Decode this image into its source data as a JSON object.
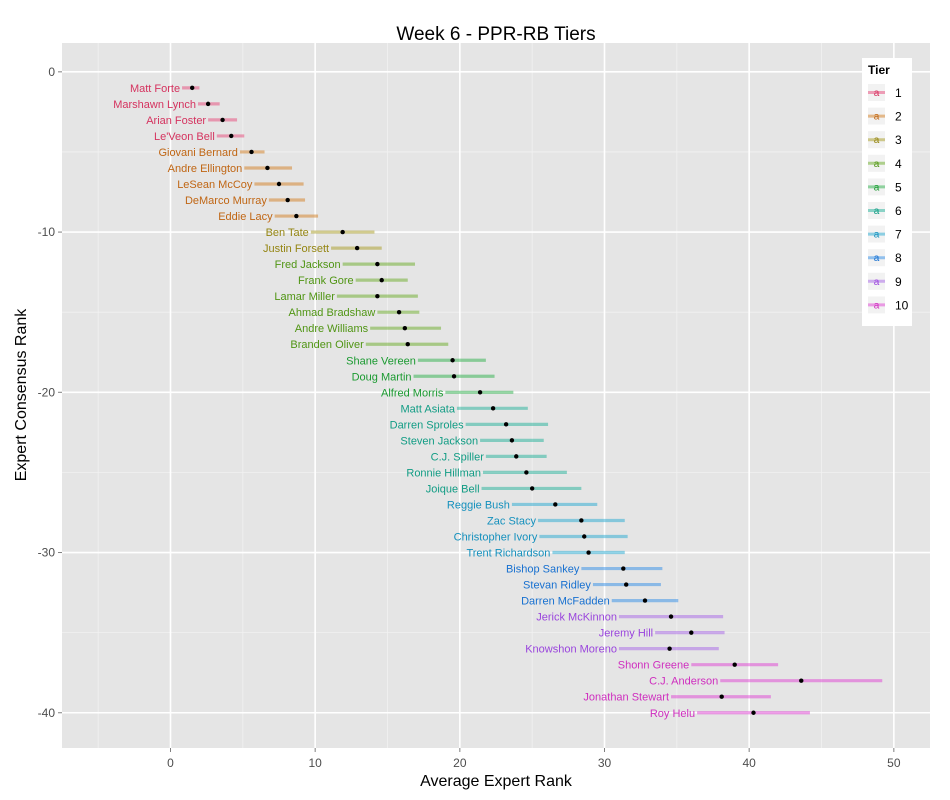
{
  "chart_data": {
    "type": "scatter",
    "title": "Week 6 - PPR-RB Tiers",
    "xlabel": "Average Expert Rank",
    "ylabel": "Expert Consensus Rank",
    "xlim": [
      -7.5,
      52.5
    ],
    "ylim": [
      -42.2,
      1.8
    ],
    "x_ticks": [
      0,
      10,
      20,
      30,
      40,
      50
    ],
    "y_ticks": [
      0,
      -10,
      -20,
      -30,
      -40
    ],
    "x_tick_labels": [
      "0",
      "10",
      "20",
      "30",
      "40",
      "50"
    ],
    "y_tick_labels": [
      "0",
      "-10",
      "-20",
      "-30",
      "-40"
    ],
    "grid": true,
    "legend": {
      "title": "Tier",
      "position": "right",
      "key_letter": "a"
    },
    "tier_colors": {
      "1": "#e8477a",
      "2": "#d47d1f",
      "3": "#a89b22",
      "4": "#6aab26",
      "5": "#2bb04a",
      "6": "#22b299",
      "7": "#25a9d1",
      "8": "#2f8ee8",
      "9": "#a765e8",
      "10": "#df3fd3"
    },
    "tier_text_colors": {
      "1": "#d5335f",
      "2": "#c06614",
      "3": "#948512",
      "4": "#509514",
      "5": "#1a9a30",
      "6": "#119c84",
      "7": "#1490bd",
      "8": "#1770d0",
      "9": "#9a45dd",
      "10": "#cf2ebf"
    },
    "series": [
      {
        "name": "1",
        "points": [
          {
            "label": "Matt Forte",
            "y": -1,
            "x": 1.5,
            "lo": 0.8,
            "hi": 2.0
          },
          {
            "label": "Marshawn Lynch",
            "y": -2,
            "x": 2.6,
            "lo": 1.9,
            "hi": 3.4
          },
          {
            "label": "Arian Foster",
            "y": -3,
            "x": 3.6,
            "lo": 2.6,
            "hi": 4.6
          },
          {
            "label": "Le'Veon Bell",
            "y": -4,
            "x": 4.2,
            "lo": 3.2,
            "hi": 5.1
          }
        ]
      },
      {
        "name": "2",
        "points": [
          {
            "label": "Giovani Bernard",
            "y": -5,
            "x": 5.6,
            "lo": 4.8,
            "hi": 6.5
          },
          {
            "label": "Andre Ellington",
            "y": -6,
            "x": 6.7,
            "lo": 5.1,
            "hi": 8.4
          },
          {
            "label": "LeSean McCoy",
            "y": -7,
            "x": 7.5,
            "lo": 5.8,
            "hi": 9.2
          },
          {
            "label": "DeMarco Murray",
            "y": -8,
            "x": 8.1,
            "lo": 6.8,
            "hi": 9.3
          },
          {
            "label": "Eddie Lacy",
            "y": -9,
            "x": 8.7,
            "lo": 7.2,
            "hi": 10.2
          }
        ]
      },
      {
        "name": "3",
        "points": [
          {
            "label": "Ben Tate",
            "y": -10,
            "x": 11.9,
            "lo": 9.7,
            "hi": 14.1
          },
          {
            "label": "Justin Forsett",
            "y": -11,
            "x": 12.9,
            "lo": 11.1,
            "hi": 14.6
          }
        ]
      },
      {
        "name": "4",
        "points": [
          {
            "label": "Fred Jackson",
            "y": -12,
            "x": 14.3,
            "lo": 11.9,
            "hi": 16.9
          },
          {
            "label": "Frank Gore",
            "y": -13,
            "x": 14.6,
            "lo": 12.8,
            "hi": 16.4
          },
          {
            "label": "Lamar Miller",
            "y": -14,
            "x": 14.3,
            "lo": 11.5,
            "hi": 17.1
          },
          {
            "label": "Ahmad Bradshaw",
            "y": -15,
            "x": 15.8,
            "lo": 14.3,
            "hi": 17.2
          },
          {
            "label": "Andre Williams",
            "y": -16,
            "x": 16.2,
            "lo": 13.8,
            "hi": 18.7
          },
          {
            "label": "Branden Oliver",
            "y": -17,
            "x": 16.4,
            "lo": 13.5,
            "hi": 19.2
          }
        ]
      },
      {
        "name": "5",
        "points": [
          {
            "label": "Shane Vereen",
            "y": -18,
            "x": 19.5,
            "lo": 17.1,
            "hi": 21.8
          },
          {
            "label": "Doug Martin",
            "y": -19,
            "x": 19.6,
            "lo": 16.8,
            "hi": 22.4
          },
          {
            "label": "Alfred Morris",
            "y": -20,
            "x": 21.4,
            "lo": 19.0,
            "hi": 23.7
          }
        ]
      },
      {
        "name": "6",
        "points": [
          {
            "label": "Matt Asiata",
            "y": -21,
            "x": 22.3,
            "lo": 19.8,
            "hi": 24.7
          },
          {
            "label": "Darren Sproles",
            "y": -22,
            "x": 23.2,
            "lo": 20.4,
            "hi": 26.1
          },
          {
            "label": "Steven Jackson",
            "y": -23,
            "x": 23.6,
            "lo": 21.4,
            "hi": 25.8
          },
          {
            "label": "C.J. Spiller",
            "y": -24,
            "x": 23.9,
            "lo": 21.8,
            "hi": 26.0
          },
          {
            "label": "Ronnie Hillman",
            "y": -25,
            "x": 24.6,
            "lo": 21.6,
            "hi": 27.4
          },
          {
            "label": "Joique Bell",
            "y": -26,
            "x": 25.0,
            "lo": 21.5,
            "hi": 28.4
          }
        ]
      },
      {
        "name": "7",
        "points": [
          {
            "label": "Reggie Bush",
            "y": -27,
            "x": 26.6,
            "lo": 23.6,
            "hi": 29.5
          },
          {
            "label": "Zac Stacy",
            "y": -28,
            "x": 28.4,
            "lo": 25.4,
            "hi": 31.4
          },
          {
            "label": "Christopher Ivory",
            "y": -29,
            "x": 28.6,
            "lo": 25.5,
            "hi": 31.6
          },
          {
            "label": "Trent Richardson",
            "y": -30,
            "x": 28.9,
            "lo": 26.4,
            "hi": 31.4
          }
        ]
      },
      {
        "name": "8",
        "points": [
          {
            "label": "Bishop Sankey",
            "y": -31,
            "x": 31.3,
            "lo": 28.4,
            "hi": 34.0
          },
          {
            "label": "Stevan Ridley",
            "y": -32,
            "x": 31.5,
            "lo": 29.2,
            "hi": 33.9
          },
          {
            "label": "Darren McFadden",
            "y": -33,
            "x": 32.8,
            "lo": 30.5,
            "hi": 35.1
          }
        ]
      },
      {
        "name": "9",
        "points": [
          {
            "label": "Jerick McKinnon",
            "y": -34,
            "x": 34.6,
            "lo": 31.0,
            "hi": 38.2
          },
          {
            "label": "Jeremy Hill",
            "y": -35,
            "x": 36.0,
            "lo": 33.5,
            "hi": 38.3
          },
          {
            "label": "Knowshon Moreno",
            "y": -36,
            "x": 34.5,
            "lo": 31.0,
            "hi": 37.9
          }
        ]
      },
      {
        "name": "10",
        "points": [
          {
            "label": "Shonn Greene",
            "y": -37,
            "x": 39.0,
            "lo": 36.0,
            "hi": 42.0
          },
          {
            "label": "C.J. Anderson",
            "y": -38,
            "x": 43.6,
            "lo": 38.0,
            "hi": 49.2
          },
          {
            "label": "Jonathan Stewart",
            "y": -39,
            "x": 38.1,
            "lo": 34.6,
            "hi": 41.5
          },
          {
            "label": "Roy Helu",
            "y": -40,
            "x": 40.3,
            "lo": 36.4,
            "hi": 44.2
          }
        ]
      }
    ]
  }
}
